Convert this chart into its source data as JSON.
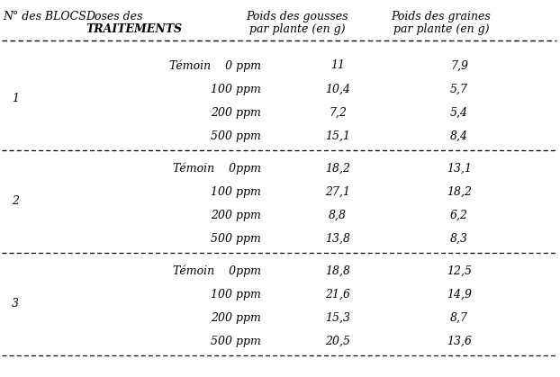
{
  "col_headers_line1": [
    "N° des BLOCS",
    "Doses des",
    "Poids des gousses",
    "Poids des graines"
  ],
  "col_headers_line2": [
    "",
    "TRAITEMENTS",
    "par plante (en g)",
    "par plante (en g)"
  ],
  "blocks": [
    {
      "bloc_num": "1",
      "rows": [
        {
          "treatment": "Témoin    0 ppm",
          "poids_gousses": "11",
          "poids_graines": "7,9"
        },
        {
          "treatment": "100 ppm",
          "poids_gousses": "10,4",
          "poids_graines": "5,7"
        },
        {
          "treatment": "200 ppm",
          "poids_gousses": "7,2",
          "poids_graines": "5,4"
        },
        {
          "treatment": "500 ppm",
          "poids_gousses": "15,1",
          "poids_graines": "8,4"
        }
      ]
    },
    {
      "bloc_num": "2",
      "rows": [
        {
          "treatment": "Témoin    0ppm",
          "poids_gousses": "18,2",
          "poids_graines": "13,1"
        },
        {
          "treatment": "100 ppm",
          "poids_gousses": "27,1",
          "poids_graines": "18,2"
        },
        {
          "treatment": "200 ppm",
          "poids_gousses": "8,8",
          "poids_graines": "6,2"
        },
        {
          "treatment": "500 ppm",
          "poids_gousses": "13,8",
          "poids_graines": "8,3"
        }
      ]
    },
    {
      "bloc_num": "3",
      "rows": [
        {
          "treatment": "Témoin    0ppm",
          "poids_gousses": "18,8",
          "poids_graines": "12,5"
        },
        {
          "treatment": "100 ppm",
          "poids_gousses": "21,6",
          "poids_graines": "14,9"
        },
        {
          "treatment": "200 ppm",
          "poids_gousses": "15,3",
          "poids_graines": "8,7"
        },
        {
          "treatment": "500 ppm",
          "poids_gousses": "20,5",
          "poids_graines": "13,6"
        }
      ]
    }
  ],
  "bg_color": "#ffffff",
  "text_color": "#000000",
  "header_fontsize": 9.0,
  "data_fontsize": 9.0,
  "line2_bold": [
    false,
    true,
    false,
    false
  ]
}
